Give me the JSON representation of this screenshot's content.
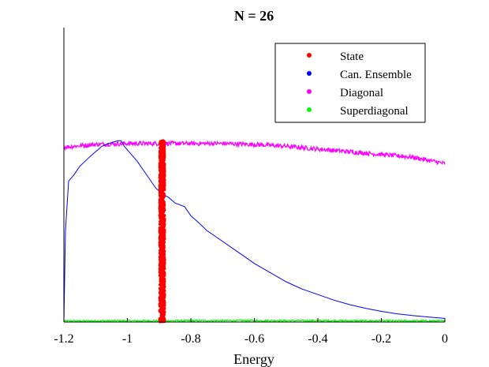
{
  "chart_data": {
    "type": "line",
    "title": "N = 26",
    "xlabel": "Energy",
    "ylabel": "",
    "xlim": [
      -1.2,
      0
    ],
    "ylim": [
      0,
      1
    ],
    "x_ticks": [
      -1.2,
      -1,
      -0.8,
      -0.6,
      -0.4,
      -0.2,
      0
    ],
    "x_tick_labels": [
      "-1.2",
      "-1",
      "-0.8",
      "-0.6",
      "-0.4",
      "-0.2",
      "0"
    ],
    "y_ticks_shown": false,
    "grid": false,
    "legend_position": "top-right",
    "legend": [
      {
        "label": "State",
        "color": "#ff0000"
      },
      {
        "label": "Can. Ensemble",
        "color": "#0000ff"
      },
      {
        "label": "Diagonal",
        "color": "#ff00ff"
      },
      {
        "label": "Superdiagonal",
        "color": "#00ff00"
      }
    ],
    "series": [
      {
        "name": "State",
        "style": "dots",
        "color": "#ff0000",
        "x_range": [
          -0.898,
          -0.883
        ],
        "y_range": [
          0,
          0.99
        ]
      },
      {
        "name": "Can. Ensemble",
        "style": "line",
        "color": "#0000ff",
        "x": [
          -1.2,
          -1.195,
          -1.185,
          -1.17,
          -1.15,
          -1.12,
          -1.1,
          -1.08,
          -1.06,
          -1.04,
          -1.03,
          -1.02,
          -1.01,
          -0.99,
          -0.97,
          -0.95,
          -0.93,
          -0.91,
          -0.89,
          -0.87,
          -0.85,
          -0.82,
          -0.8,
          -0.78,
          -0.75,
          -0.7,
          -0.65,
          -0.6,
          -0.55,
          -0.5,
          -0.45,
          -0.4,
          -0.35,
          -0.3,
          -0.25,
          -0.2,
          -0.15,
          -0.1,
          -0.05,
          0
        ],
        "y": [
          0.0,
          0.5,
          0.77,
          0.8,
          0.85,
          0.9,
          0.93,
          0.96,
          0.975,
          0.985,
          0.99,
          0.99,
          0.96,
          0.92,
          0.88,
          0.83,
          0.78,
          0.73,
          0.7,
          0.68,
          0.65,
          0.63,
          0.58,
          0.55,
          0.5,
          0.44,
          0.38,
          0.32,
          0.27,
          0.22,
          0.18,
          0.15,
          0.12,
          0.095,
          0.075,
          0.058,
          0.045,
          0.035,
          0.027,
          0.02
        ]
      },
      {
        "name": "Diagonal",
        "style": "noisy-line",
        "color": "#ff00ff",
        "noise": 0.012,
        "x": [
          -1.2,
          -1.1,
          -1.0,
          -0.9,
          -0.8,
          -0.7,
          -0.6,
          -0.5,
          -0.4,
          -0.3,
          -0.2,
          -0.1,
          0
        ],
        "y": [
          0.955,
          0.97,
          0.975,
          0.975,
          0.975,
          0.975,
          0.97,
          0.96,
          0.945,
          0.93,
          0.915,
          0.9,
          0.865
        ]
      },
      {
        "name": "Superdiagonal",
        "style": "noisy-line",
        "color": "#00ff00",
        "noise": 0.004,
        "x": [
          -1.2,
          -0.6,
          0
        ],
        "y": [
          0.006,
          0.008,
          0.006
        ]
      }
    ]
  }
}
